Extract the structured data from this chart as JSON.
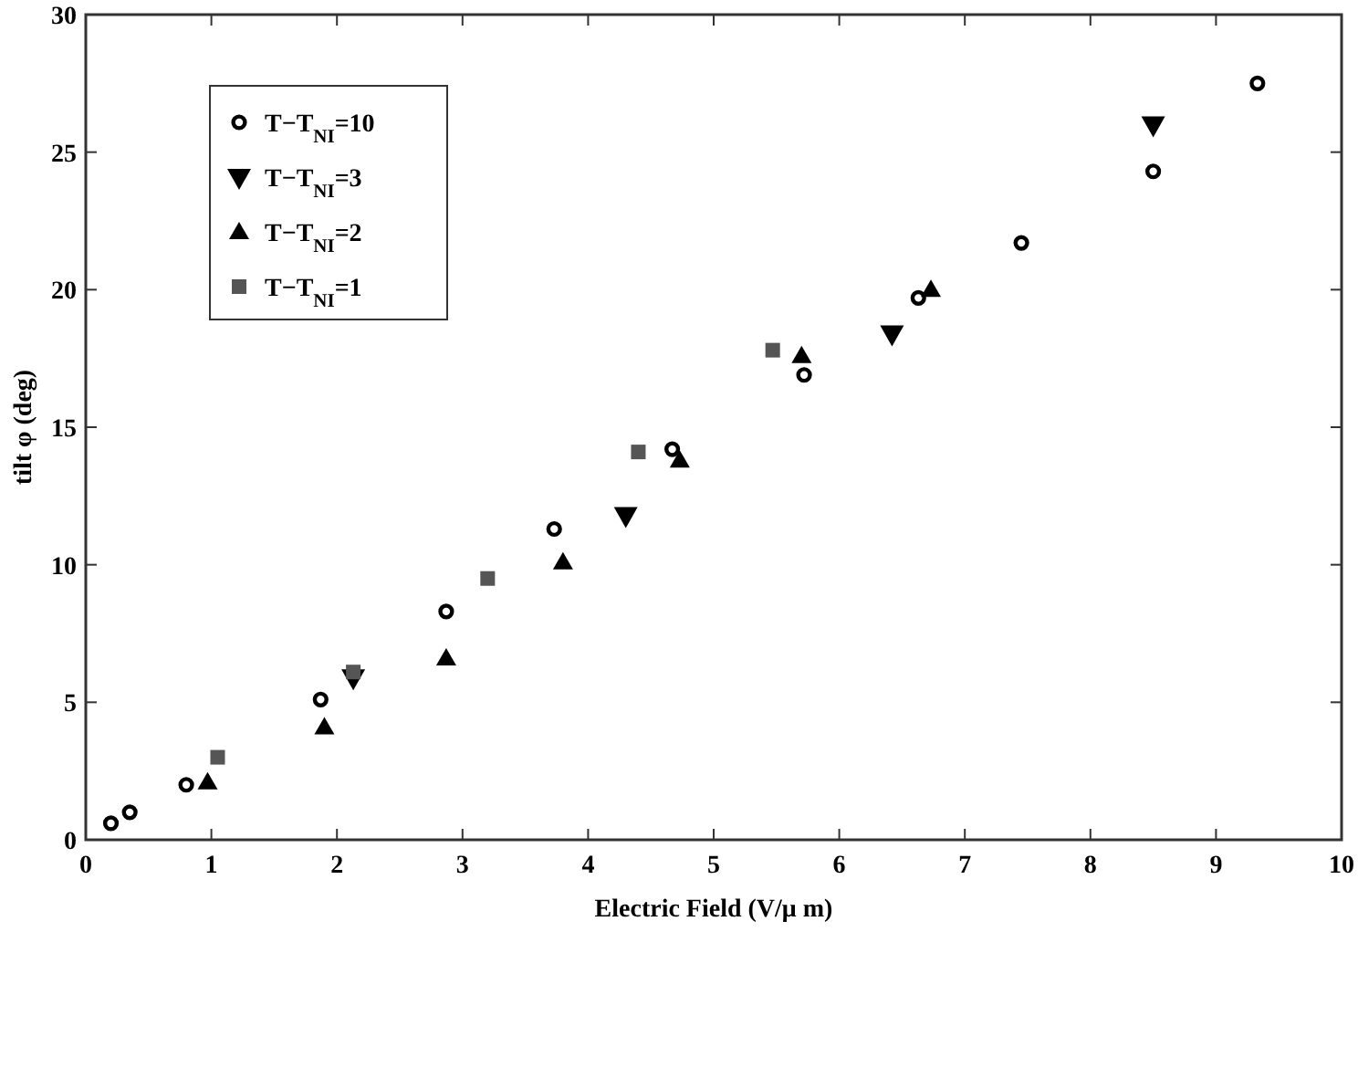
{
  "chart_data": {
    "type": "scatter",
    "xlabel": "Electric Field (V/μ m)",
    "ylabel": "tilt φ (deg)",
    "xlim": [
      0,
      10
    ],
    "ylim": [
      0,
      30
    ],
    "xticks": [
      0,
      1,
      2,
      3,
      4,
      5,
      6,
      7,
      8,
      9,
      10
    ],
    "yticks": [
      0,
      5,
      10,
      15,
      20,
      25,
      30
    ],
    "grid": false,
    "legend": "top left",
    "series": [
      {
        "name": "T−T$_{NI}$=10",
        "color": "#000000",
        "marker": "circle",
        "x": [
          0.2,
          0.35,
          0.8,
          1.87,
          2.87,
          3.73,
          4.67,
          5.72,
          6.63,
          7.45,
          8.5,
          9.33
        ],
        "values": [
          0.6,
          1.0,
          2.0,
          5.1,
          8.3,
          11.3,
          14.2,
          16.9,
          19.7,
          21.7,
          24.3,
          27.5
        ]
      },
      {
        "name": "T−T$_{NI}$=3",
        "color": "#000000",
        "marker": "triangle-down",
        "x": [
          2.13,
          4.3,
          6.42,
          8.5
        ],
        "values": [
          5.9,
          11.8,
          18.4,
          26.0
        ]
      },
      {
        "name": "T−T$_{NI}$=2",
        "color": "#000000",
        "marker": "triangle",
        "x": [
          0.97,
          1.9,
          2.87,
          3.8,
          4.73,
          5.7,
          6.73
        ],
        "values": [
          2.1,
          4.1,
          6.6,
          10.1,
          13.8,
          17.6,
          20.0
        ]
      },
      {
        "name": "T−T$_{NI}$=1",
        "color": "#555555",
        "marker": "square",
        "x": [
          1.05,
          2.13,
          3.2,
          4.4,
          5.47
        ],
        "values": [
          3.0,
          6.1,
          9.5,
          14.1,
          17.8
        ]
      }
    ]
  }
}
